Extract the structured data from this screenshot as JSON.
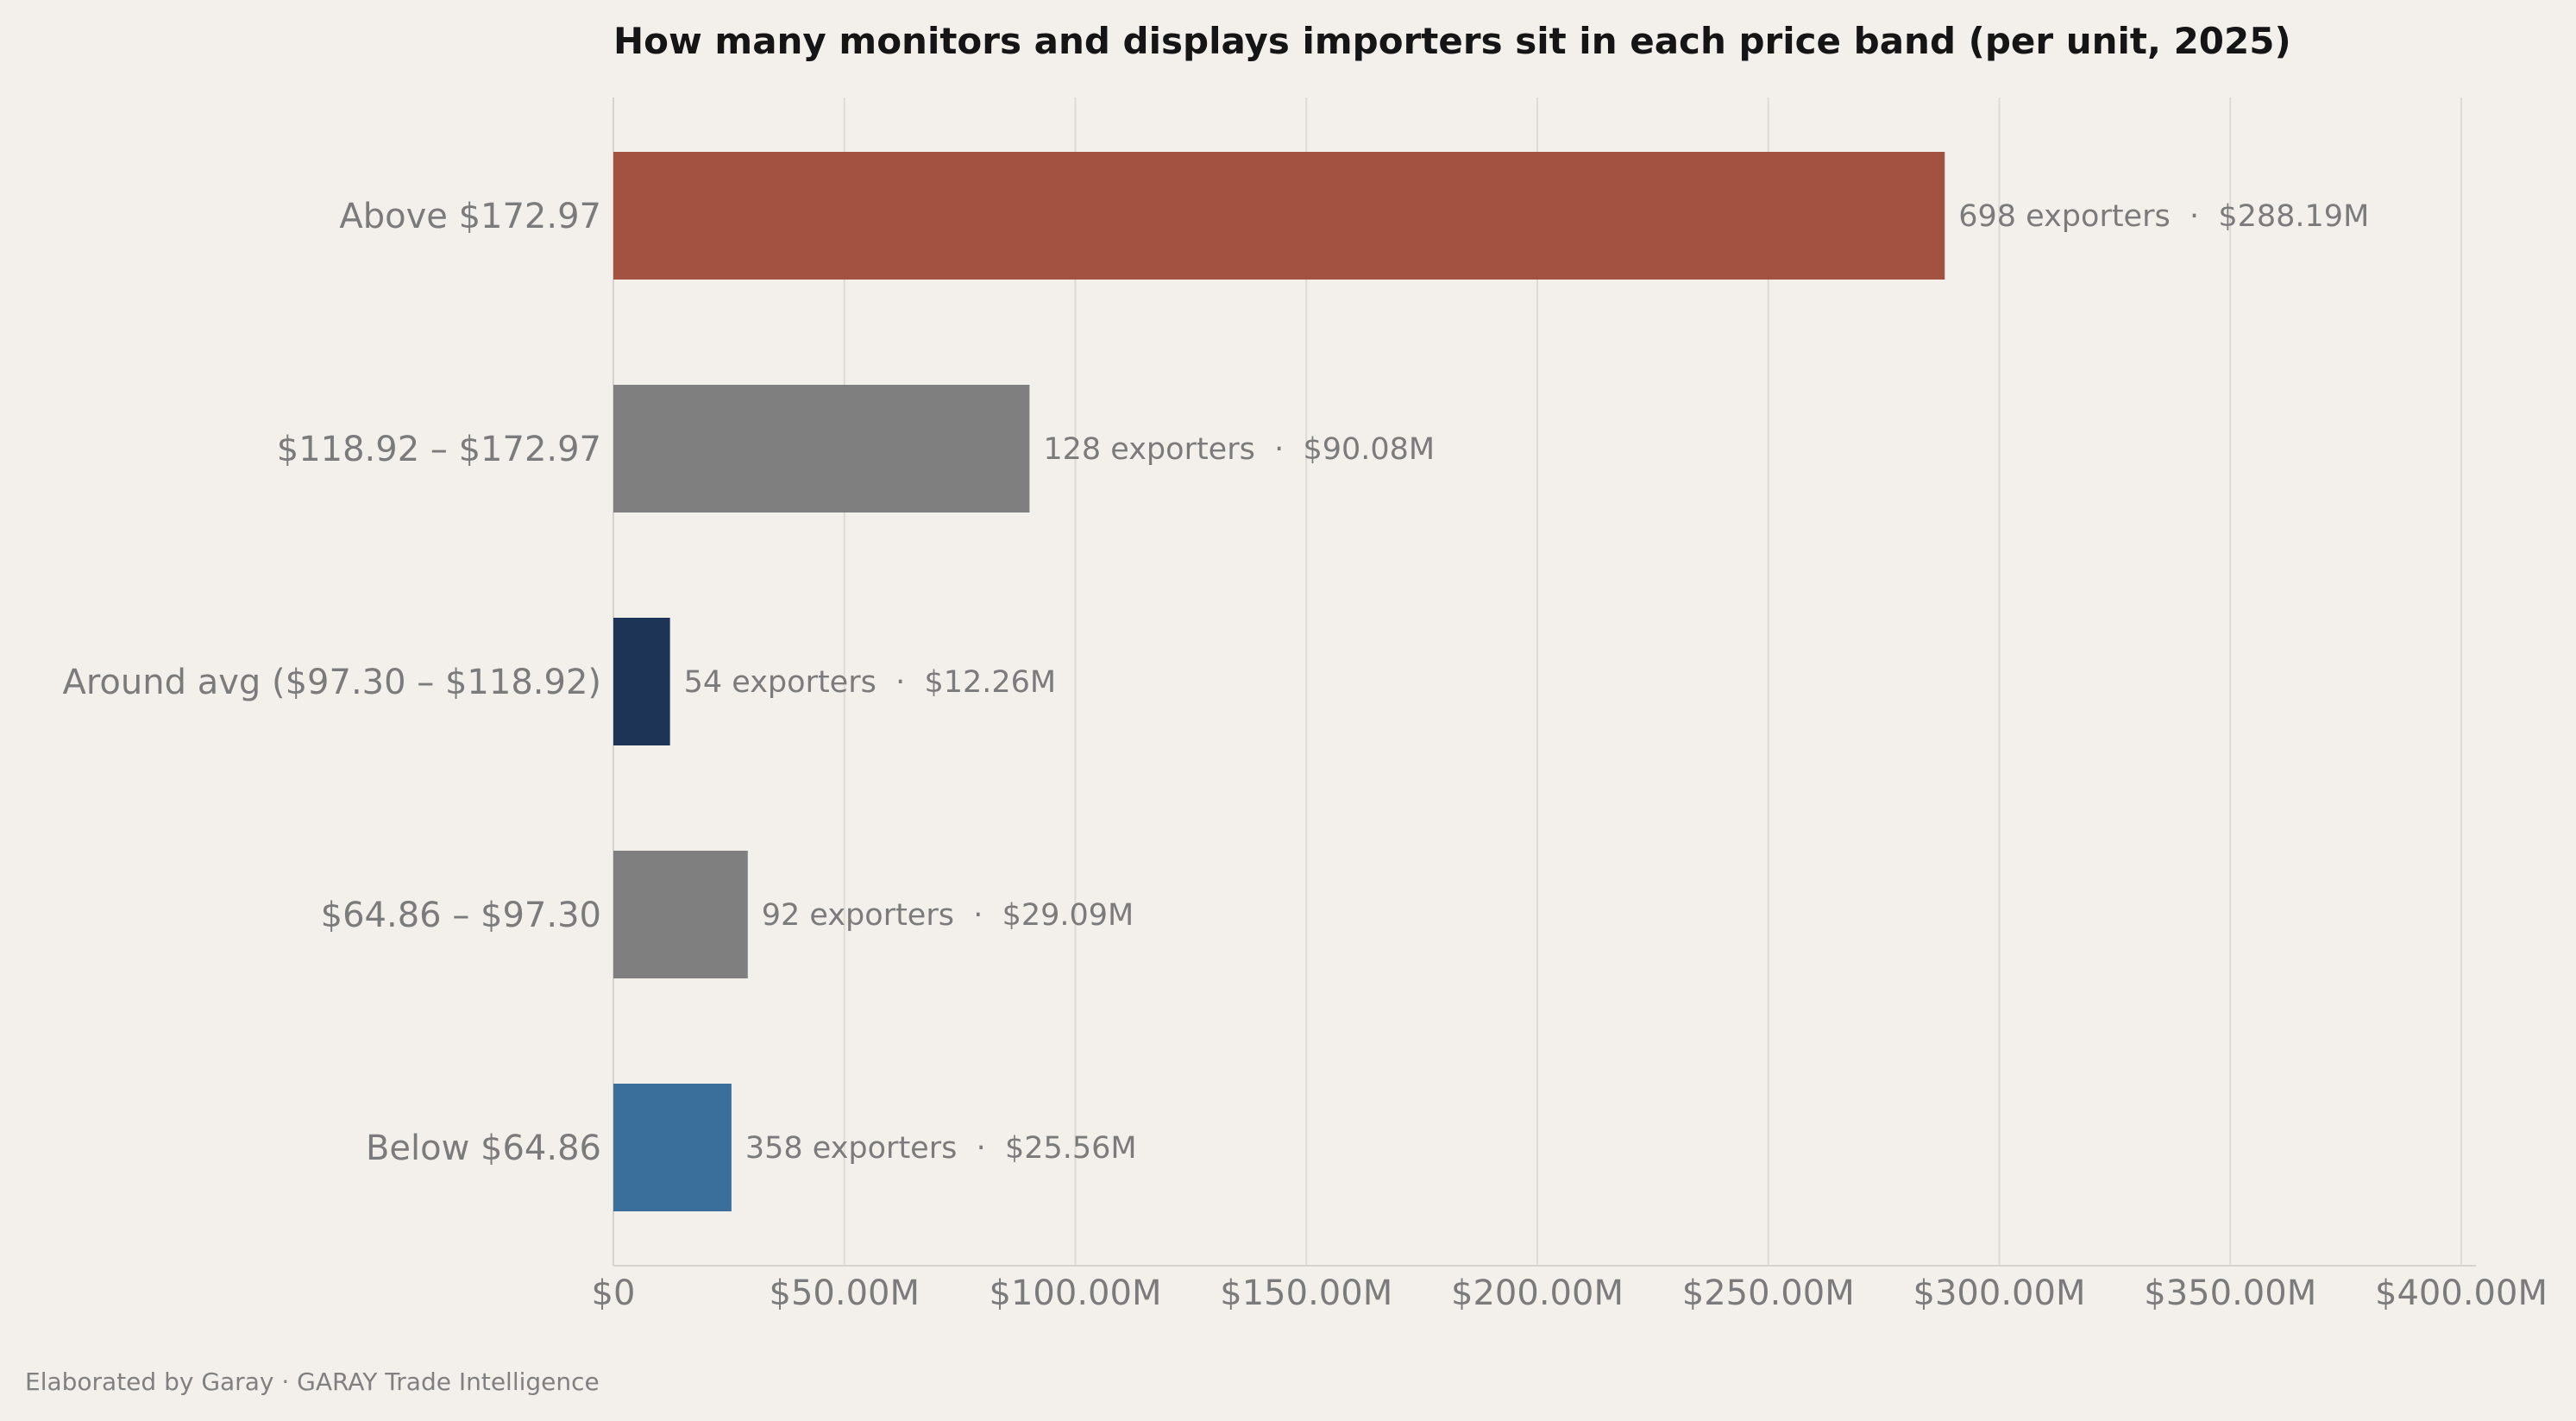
{
  "chart_data": {
    "type": "bar",
    "orientation": "horizontal",
    "title": "How many monitors and displays importers sit in each price band (per unit, 2025)",
    "xlabel": "",
    "ylabel": "",
    "xlim": [
      0,
      400000000
    ],
    "ticks": [
      0,
      50000000,
      100000000,
      150000000,
      200000000,
      250000000,
      300000000,
      350000000,
      400000000
    ],
    "tick_labels": [
      "$0",
      "$50.00M",
      "$100.00M",
      "$150.00M",
      "$200.00M",
      "$250.00M",
      "$300.00M",
      "$350.00M",
      "$400.00M"
    ],
    "grid": true,
    "categories": [
      "Above $172.97",
      "$118.92 – $172.97",
      "Around avg ($97.30 – $118.92)",
      "$64.86 – $97.30",
      "Below $64.86"
    ],
    "values": [
      288190000,
      90080000,
      12260000,
      29090000,
      25560000
    ],
    "exporters": [
      698,
      128,
      54,
      92,
      358
    ],
    "data_labels": [
      "698 exporters  ·  $288.19M",
      "128 exporters  ·  $90.08M",
      "54 exporters  ·  $12.26M",
      "92 exporters  ·  $29.09M",
      "358 exporters  ·  $25.56M"
    ],
    "colors": [
      "#a35140",
      "#7f7f7f",
      "#1e3457",
      "#7f7f7f",
      "#3a6e9b"
    ]
  },
  "footer": "Elaborated by Garay  ·  GARAY Trade Intelligence"
}
